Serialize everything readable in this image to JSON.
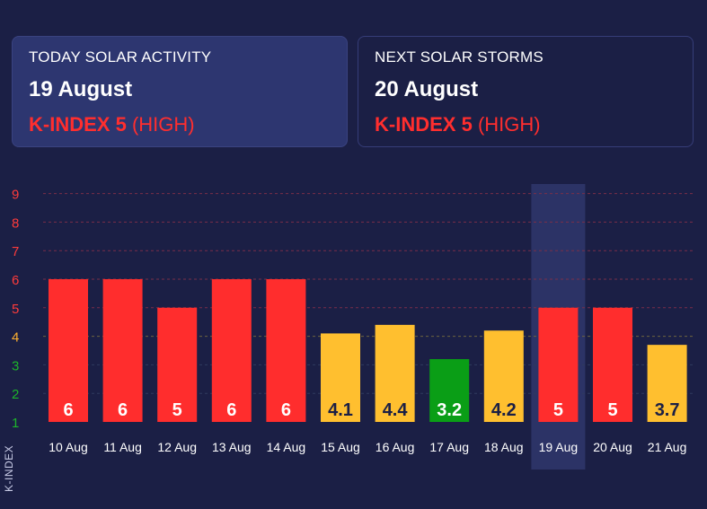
{
  "today": {
    "label": "TODAY SOLAR ACTIVITY",
    "date": "19 August",
    "k_prefix": "K-INDEX",
    "k_value": "5",
    "k_level": "HIGH"
  },
  "next": {
    "label": "NEXT SOLAR STORMS",
    "date": "20 August",
    "k_prefix": "K-INDEX",
    "k_value": "5",
    "k_level": "HIGH"
  },
  "colors": {
    "high": "#ff2d2d",
    "moderate": "#ffbf2f",
    "low": "#0a9e16",
    "tick_high": "#ff3b3b",
    "tick_moderate": "#ffb030",
    "tick_low": "#1cb52a"
  },
  "chart_data": {
    "type": "bar",
    "categories": [
      "10 Aug",
      "11 Aug",
      "12 Aug",
      "13 Aug",
      "14 Aug",
      "15 Aug",
      "16 Aug",
      "17 Aug",
      "18 Aug",
      "19 Aug",
      "20 Aug",
      "21 Aug"
    ],
    "values": [
      6,
      6,
      5,
      6,
      6,
      4.1,
      4.4,
      3.2,
      4.2,
      5,
      5,
      3.7
    ],
    "value_labels": [
      "6",
      "6",
      "5",
      "6",
      "6",
      "4.1",
      "4.4",
      "3.2",
      "4.2",
      "5",
      "5",
      "3.7"
    ],
    "bar_levels": [
      "high",
      "high",
      "high",
      "high",
      "high",
      "moderate",
      "moderate",
      "low",
      "moderate",
      "high",
      "high",
      "moderate"
    ],
    "title": "",
    "xlabel": "",
    "ylabel": "K-INDEX",
    "yticks": [
      "1",
      "2",
      "3",
      "4",
      "5",
      "6",
      "7",
      "8",
      "9"
    ],
    "ylim": [
      1,
      9
    ],
    "highlighted_category": "19 Aug",
    "grid": true
  }
}
